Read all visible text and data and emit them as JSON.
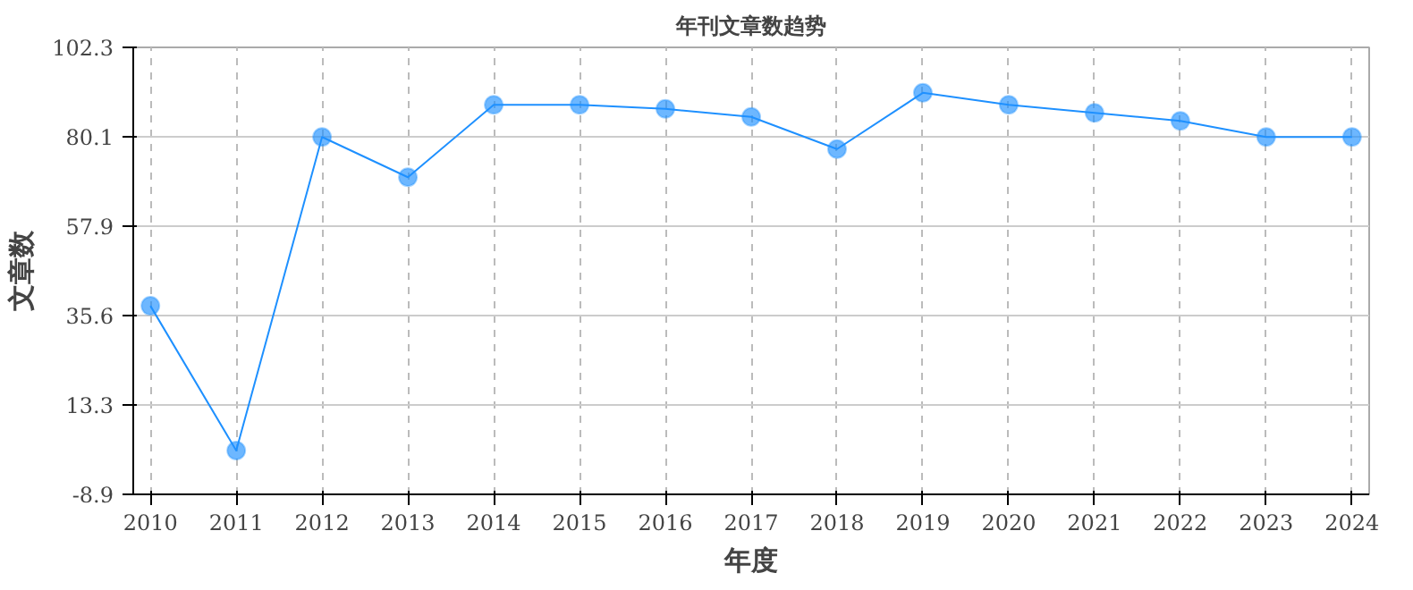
{
  "chart_data": {
    "type": "line",
    "title": "年刊文章数趋势",
    "xlabel": "年度",
    "ylabel": "文章数",
    "categories": [
      "2010",
      "2011",
      "2012",
      "2013",
      "2014",
      "2015",
      "2016",
      "2017",
      "2018",
      "2019",
      "2020",
      "2021",
      "2022",
      "2023",
      "2024"
    ],
    "series": [
      {
        "color": "#1e90ff",
        "values": [
          38,
          2,
          80,
          70,
          88,
          88,
          87,
          85,
          77,
          91,
          88,
          86,
          84,
          80,
          80
        ]
      }
    ],
    "ylim": [
      -8.9,
      102.3
    ],
    "yticks": [
      -8.9,
      13.3,
      35.6,
      57.9,
      80.1,
      102.3
    ],
    "grid": true,
    "marker": "circle",
    "line_style": "solid"
  }
}
